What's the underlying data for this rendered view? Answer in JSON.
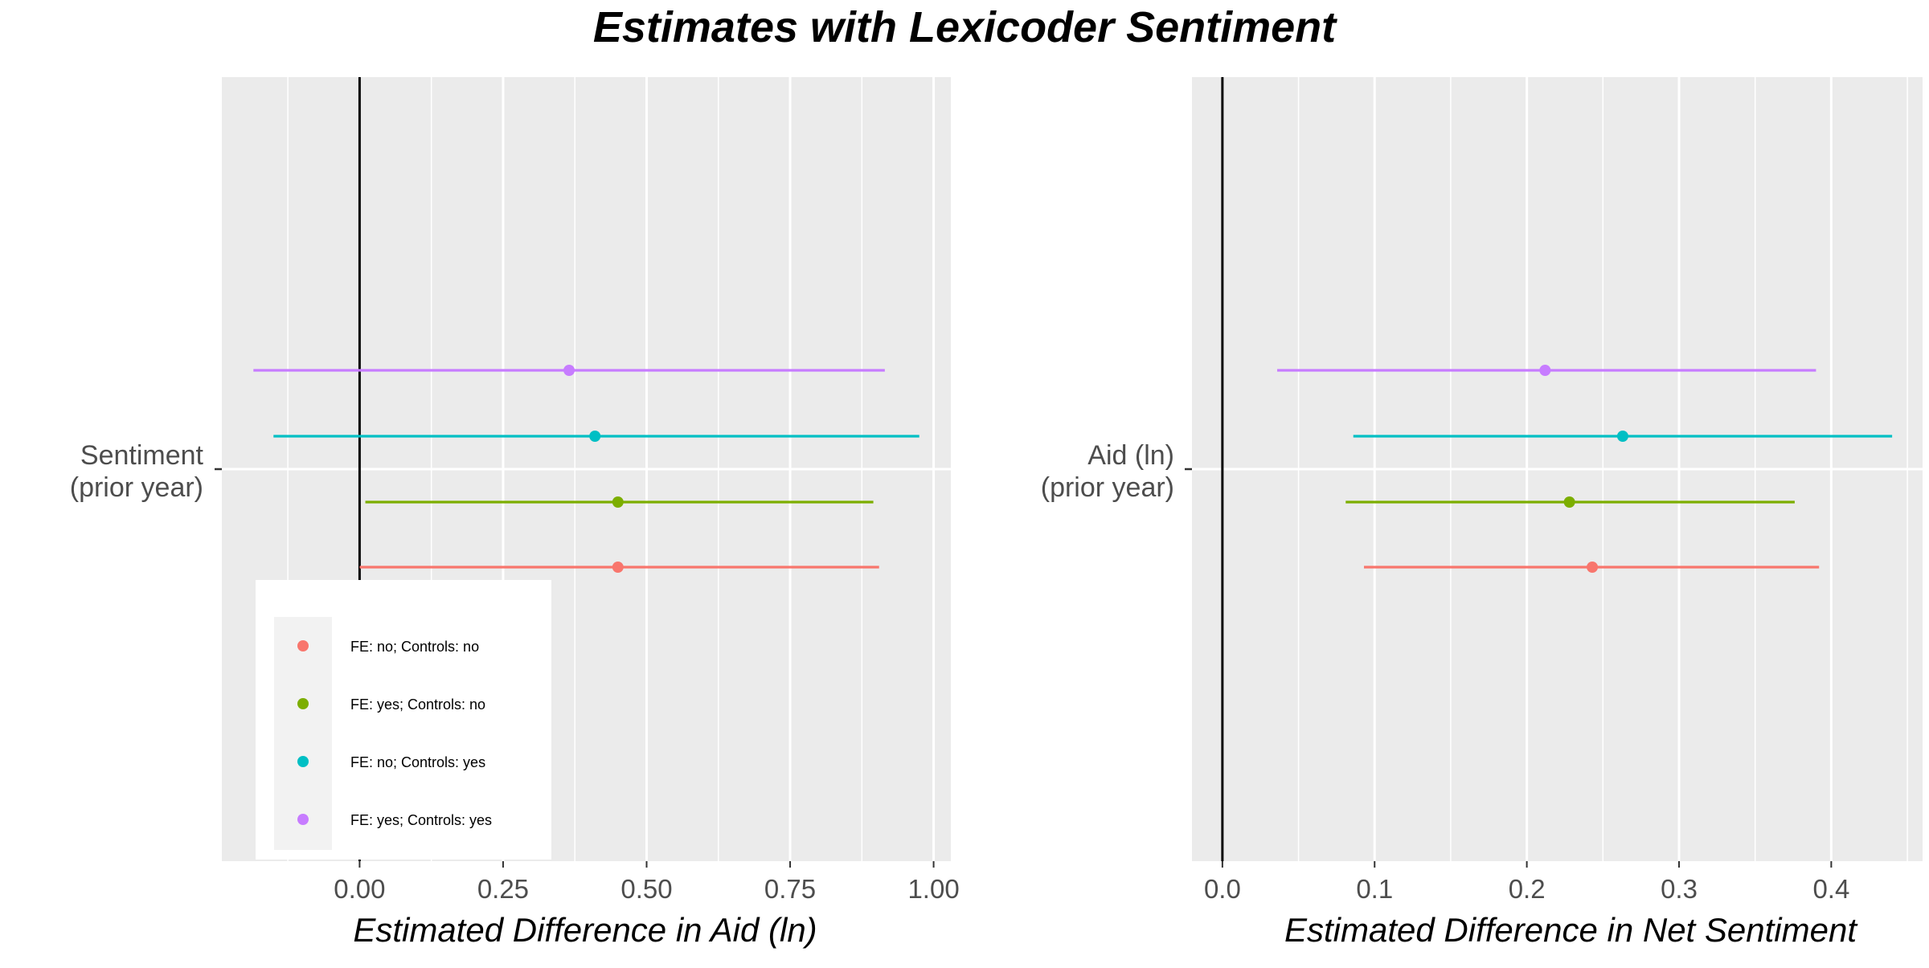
{
  "title": "Estimates with Lexicoder Sentiment",
  "legend": {
    "placement": "bottom-left inside left panel",
    "entries": [
      {
        "label": "FE: no; Controls: no",
        "color": "#F8766D"
      },
      {
        "label": "FE: yes; Controls: no",
        "color": "#7CAE00"
      },
      {
        "label": "FE: no; Controls: yes",
        "color": "#00BFC4"
      },
      {
        "label": "FE: yes; Controls: yes",
        "color": "#C77CFF"
      }
    ]
  },
  "chart_data": [
    {
      "type": "scatter",
      "subtype": "coefficient-plot",
      "xlabel": "Estimated Difference in Aid (ln)",
      "ylabel_lines": [
        "Sentiment",
        "(prior year)"
      ],
      "xlim": [
        -0.24,
        1.03
      ],
      "xticks": [
        0.0,
        0.25,
        0.5,
        0.75,
        1.0
      ],
      "xtick_labels": [
        "0.00",
        "0.25",
        "0.50",
        "0.75",
        "1.00"
      ],
      "reference_line": 0,
      "grid": true,
      "series": [
        {
          "name": "FE: no; Controls: no",
          "estimate": 0.45,
          "low": 0.0,
          "high": 0.905
        },
        {
          "name": "FE: yes; Controls: no",
          "estimate": 0.45,
          "low": 0.01,
          "high": 0.895
        },
        {
          "name": "FE: no; Controls: yes",
          "estimate": 0.41,
          "low": -0.15,
          "high": 0.975
        },
        {
          "name": "FE: yes; Controls: yes",
          "estimate": 0.365,
          "low": -0.185,
          "high": 0.915
        }
      ]
    },
    {
      "type": "scatter",
      "subtype": "coefficient-plot",
      "xlabel": "Estimated Difference in Net Sentiment",
      "ylabel_lines": [
        "Aid (ln)",
        "(prior year)"
      ],
      "xlim": [
        -0.02,
        0.46
      ],
      "xticks": [
        0.0,
        0.1,
        0.2,
        0.3,
        0.4
      ],
      "xtick_labels": [
        "0.0",
        "0.1",
        "0.2",
        "0.3",
        "0.4"
      ],
      "reference_line": 0,
      "grid": true,
      "series": [
        {
          "name": "FE: no; Controls: no",
          "estimate": 0.243,
          "low": 0.093,
          "high": 0.392
        },
        {
          "name": "FE: yes; Controls: no",
          "estimate": 0.228,
          "low": 0.081,
          "high": 0.376
        },
        {
          "name": "FE: no; Controls: yes",
          "estimate": 0.263,
          "low": 0.086,
          "high": 0.44
        },
        {
          "name": "FE: yes; Controls: yes",
          "estimate": 0.212,
          "low": 0.036,
          "high": 0.39
        }
      ]
    }
  ]
}
